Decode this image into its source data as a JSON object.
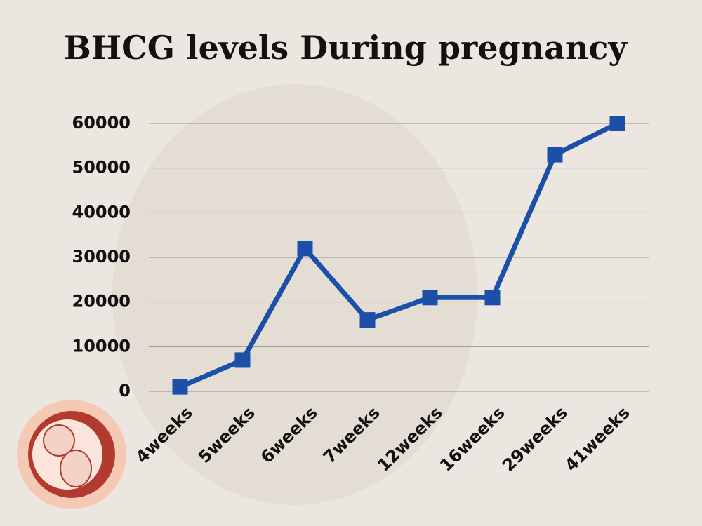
{
  "chart_data": {
    "type": "line",
    "title": "BHCG levels During pregnancy",
    "categories": [
      "4weeks",
      "5weeks",
      "6weeks",
      "7weeks",
      "12weeks",
      "16weeks",
      "29weeks",
      "41weeks"
    ],
    "values": [
      1000,
      7000,
      32000,
      16000,
      21000,
      21000,
      53000,
      60000
    ],
    "color": "#1b4fa8",
    "ylim": [
      0,
      60000
    ],
    "yticks": [
      0,
      10000,
      20000,
      30000,
      40000,
      50000,
      60000
    ],
    "grid": true
  }
}
